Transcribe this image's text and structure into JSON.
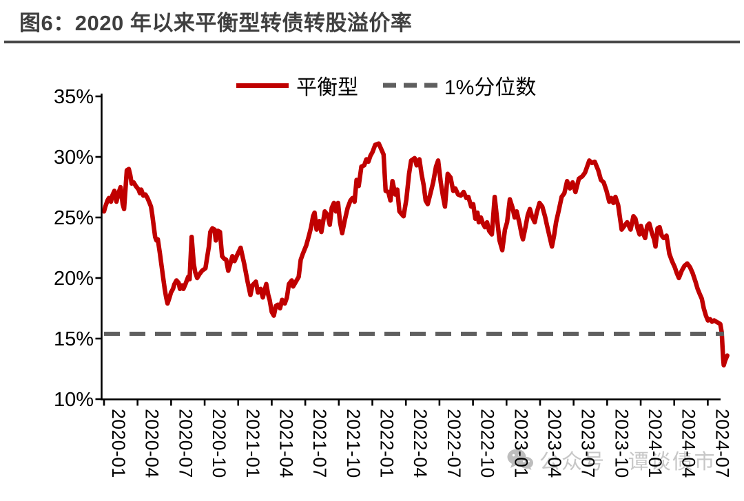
{
  "figure": {
    "title": "图6：2020 年以来平衡型转债转股溢价率"
  },
  "legend": {
    "series1_label": "平衡型",
    "series2_label": "1%分位数"
  },
  "watermark": {
    "icon": "wechat-icon",
    "text": "公众号 · 谭谈债市"
  },
  "colors": {
    "series_line": "#C00000",
    "percentile_line": "#5F5F5F",
    "title_text": "#3F3F3F",
    "title_rule": "#474747",
    "axis": "#000000",
    "watermark": "#C7C7C7"
  },
  "chart_data": {
    "type": "line",
    "title": "图6：2020 年以来平衡型转债转股溢价率",
    "legend_position": "top",
    "grid": false,
    "x_axis": {
      "unit": "months since 2020-01 (t=0 is 2020-01)",
      "tick_labels": [
        "2020-01",
        "2020-04",
        "2020-07",
        "2020-10",
        "2021-01",
        "2021-04",
        "2021-07",
        "2021-10",
        "2022-01",
        "2022-04",
        "2022-07",
        "2022-10",
        "2023-01",
        "2023-04",
        "2023-07",
        "2023-10",
        "2024-01",
        "2024-04",
        "2024-07"
      ],
      "tick_t_values": [
        0,
        3,
        6,
        9,
        12,
        15,
        18,
        21,
        24,
        27,
        30,
        33,
        36,
        39,
        42,
        45,
        48,
        51,
        54
      ]
    },
    "y_axis": {
      "unit": "%",
      "min": 10,
      "max": 35,
      "ticks": [
        {
          "label": "35%",
          "value": 35
        },
        {
          "label": "30%",
          "value": 30
        },
        {
          "label": "25%",
          "value": 25
        },
        {
          "label": "20%",
          "value": 20
        },
        {
          "label": "15%",
          "value": 15
        },
        {
          "label": "10%",
          "value": 10
        }
      ]
    },
    "series": [
      {
        "name": "平衡型",
        "type": "line",
        "color": "#C00000",
        "points": [
          [
            0,
            25.5
          ],
          [
            0.12,
            25.9
          ],
          [
            0.31,
            26.4
          ],
          [
            0.43,
            26.6
          ],
          [
            0.62,
            26.3
          ],
          [
            0.74,
            26.8
          ],
          [
            0.93,
            27.2
          ],
          [
            1.11,
            26.3
          ],
          [
            1.36,
            27.2
          ],
          [
            1.48,
            27.5
          ],
          [
            1.67,
            26.1
          ],
          [
            1.79,
            25.7
          ],
          [
            2.04,
            28.9
          ],
          [
            2.22,
            29.0
          ],
          [
            2.35,
            28.5
          ],
          [
            2.47,
            27.8
          ],
          [
            2.65,
            27.9
          ],
          [
            2.84,
            27.6
          ],
          [
            3.09,
            27.3
          ],
          [
            3.21,
            27.0
          ],
          [
            3.33,
            27.3
          ],
          [
            3.52,
            26.8
          ],
          [
            3.7,
            26.9
          ],
          [
            3.89,
            26.6
          ],
          [
            4.07,
            26.2
          ],
          [
            4.2,
            25.9
          ],
          [
            4.32,
            25.2
          ],
          [
            4.44,
            24.3
          ],
          [
            4.57,
            23.4
          ],
          [
            4.69,
            23.1
          ],
          [
            4.81,
            23.2
          ],
          [
            5,
            22.0
          ],
          [
            5.25,
            20.3
          ],
          [
            5.43,
            19.1
          ],
          [
            5.56,
            18.4
          ],
          [
            5.68,
            17.9
          ],
          [
            5.86,
            18.4
          ],
          [
            5.99,
            18.8
          ],
          [
            6.17,
            19.1
          ],
          [
            6.3,
            19.5
          ],
          [
            6.48,
            19.8
          ],
          [
            6.67,
            19.6
          ],
          [
            6.79,
            19.1
          ],
          [
            6.98,
            19.4
          ],
          [
            7.1,
            19.1
          ],
          [
            7.28,
            19.5
          ],
          [
            7.53,
            20.1
          ],
          [
            7.65,
            19.9
          ],
          [
            7.84,
            23.4
          ],
          [
            8.02,
            21.2
          ],
          [
            8.15,
            20.5
          ],
          [
            8.33,
            20.0
          ],
          [
            8.52,
            20.3
          ],
          [
            8.77,
            20.6
          ],
          [
            9.07,
            20.8
          ],
          [
            9.38,
            22.6
          ],
          [
            9.51,
            23.8
          ],
          [
            9.69,
            24.1
          ],
          [
            9.88,
            24.0
          ],
          [
            10,
            23.1
          ],
          [
            10.19,
            23.9
          ],
          [
            10.37,
            23.8
          ],
          [
            10.56,
            21.8
          ],
          [
            10.74,
            21.6
          ],
          [
            10.93,
            21.5
          ],
          [
            11.11,
            20.6
          ],
          [
            11.3,
            21.2
          ],
          [
            11.48,
            21.8
          ],
          [
            11.67,
            21.4
          ],
          [
            11.91,
            21.9
          ],
          [
            12.22,
            22.5
          ],
          [
            12.53,
            21.2
          ],
          [
            12.84,
            19.7
          ],
          [
            13.09,
            18.6
          ],
          [
            13.27,
            19.4
          ],
          [
            13.58,
            19.7
          ],
          [
            13.77,
            18.8
          ],
          [
            14.01,
            19.1
          ],
          [
            14.2,
            18.4
          ],
          [
            14.51,
            19.5
          ],
          [
            14.69,
            18.6
          ],
          [
            14.81,
            18.2
          ],
          [
            15,
            17.2
          ],
          [
            15.19,
            16.9
          ],
          [
            15.37,
            17.7
          ],
          [
            15.56,
            17.8
          ],
          [
            15.74,
            17.5
          ],
          [
            15.93,
            18.2
          ],
          [
            16.17,
            17.9
          ],
          [
            16.36,
            18.4
          ],
          [
            16.54,
            19.5
          ],
          [
            16.79,
            19.8
          ],
          [
            16.91,
            19.3
          ],
          [
            17.16,
            19.7
          ],
          [
            17.41,
            20.1
          ],
          [
            17.59,
            21.5
          ],
          [
            17.78,
            22.0
          ],
          [
            18.09,
            22.7
          ],
          [
            18.33,
            23.5
          ],
          [
            18.52,
            24.2
          ],
          [
            18.7,
            25.1
          ],
          [
            18.83,
            25.4
          ],
          [
            19.01,
            24.0
          ],
          [
            19.26,
            24.7
          ],
          [
            19.44,
            23.8
          ],
          [
            19.75,
            25.5
          ],
          [
            20,
            25.2
          ],
          [
            20.19,
            24.4
          ],
          [
            20.37,
            25.8
          ],
          [
            20.56,
            26.2
          ],
          [
            20.74,
            25.5
          ],
          [
            20.93,
            26.2
          ],
          [
            21.11,
            24.6
          ],
          [
            21.3,
            23.7
          ],
          [
            21.54,
            24.8
          ],
          [
            21.79,
            25.8
          ],
          [
            22.04,
            26.4
          ],
          [
            22.22,
            26.6
          ],
          [
            22.41,
            26.3
          ],
          [
            22.59,
            28.1
          ],
          [
            22.78,
            27.6
          ],
          [
            23.02,
            29.2
          ],
          [
            23.27,
            29.3
          ],
          [
            23.46,
            29.8
          ],
          [
            23.64,
            29.6
          ],
          [
            23.83,
            30.1
          ],
          [
            24.01,
            30.4
          ],
          [
            24.26,
            31.0
          ],
          [
            24.57,
            31.1
          ],
          [
            24.81,
            30.6
          ],
          [
            25,
            30.2
          ],
          [
            25.19,
            27.2
          ],
          [
            25.43,
            27.1
          ],
          [
            25.62,
            26.4
          ],
          [
            25.8,
            28.0
          ],
          [
            26.05,
            26.9
          ],
          [
            26.23,
            27.3
          ],
          [
            26.42,
            25.5
          ],
          [
            26.6,
            25.3
          ],
          [
            26.79,
            25.1
          ],
          [
            27.04,
            26.5
          ],
          [
            27.28,
            28.6
          ],
          [
            27.47,
            29.7
          ],
          [
            27.78,
            29.9
          ],
          [
            27.96,
            29.3
          ],
          [
            28.21,
            29.8
          ],
          [
            28.4,
            28.6
          ],
          [
            28.58,
            27.7
          ],
          [
            28.77,
            26.4
          ],
          [
            28.95,
            26.1
          ],
          [
            29.2,
            27.0
          ],
          [
            29.44,
            27.9
          ],
          [
            29.69,
            29.2
          ],
          [
            29.88,
            29.7
          ],
          [
            30.12,
            27.9
          ],
          [
            30.31,
            26.8
          ],
          [
            30.49,
            25.9
          ],
          [
            30.74,
            28.6
          ],
          [
            30.99,
            28.3
          ],
          [
            31.23,
            27.2
          ],
          [
            31.42,
            27.4
          ],
          [
            31.67,
            26.9
          ],
          [
            31.91,
            26.8
          ],
          [
            32.16,
            27.1
          ],
          [
            32.41,
            26.6
          ],
          [
            32.59,
            26.7
          ],
          [
            32.84,
            25.9
          ],
          [
            33.02,
            26.1
          ],
          [
            33.21,
            24.9
          ],
          [
            33.4,
            25.4
          ],
          [
            33.52,
            24.6
          ],
          [
            33.7,
            25.0
          ],
          [
            33.89,
            24.5
          ],
          [
            34.07,
            24.2
          ],
          [
            34.26,
            24.6
          ],
          [
            34.44,
            23.9
          ],
          [
            34.69,
            23.6
          ],
          [
            34.94,
            26.7
          ],
          [
            35.19,
            24.6
          ],
          [
            35.37,
            23.1
          ],
          [
            35.62,
            22.3
          ],
          [
            35.86,
            24.0
          ],
          [
            36.05,
            24.6
          ],
          [
            36.3,
            26.5
          ],
          [
            36.54,
            25.8
          ],
          [
            36.73,
            25.0
          ],
          [
            36.91,
            25.5
          ],
          [
            37.16,
            24.5
          ],
          [
            37.35,
            23.6
          ],
          [
            37.47,
            23.2
          ],
          [
            37.65,
            24.0
          ],
          [
            37.9,
            25.2
          ],
          [
            38.09,
            25.7
          ],
          [
            38.27,
            25.1
          ],
          [
            38.52,
            24.6
          ],
          [
            38.7,
            25.4
          ],
          [
            38.95,
            26.2
          ],
          [
            39.2,
            25.9
          ],
          [
            39.44,
            25.1
          ],
          [
            39.63,
            24.3
          ],
          [
            39.88,
            23.3
          ],
          [
            40.06,
            22.6
          ],
          [
            40.25,
            23.5
          ],
          [
            40.43,
            24.6
          ],
          [
            40.68,
            25.6
          ],
          [
            40.93,
            26.7
          ],
          [
            41.17,
            27.0
          ],
          [
            41.42,
            28.0
          ],
          [
            41.67,
            27.4
          ],
          [
            41.91,
            27.9
          ],
          [
            42.16,
            27.1
          ],
          [
            42.47,
            28.2
          ],
          [
            42.78,
            28.4
          ],
          [
            43.02,
            28.7
          ],
          [
            43.4,
            29.7
          ],
          [
            43.64,
            29.5
          ],
          [
            43.89,
            29.6
          ],
          [
            44.2,
            28.9
          ],
          [
            44.44,
            28.1
          ],
          [
            44.69,
            27.9
          ],
          [
            44.94,
            27.2
          ],
          [
            45.19,
            26.3
          ],
          [
            45.37,
            26.6
          ],
          [
            45.56,
            26.2
          ],
          [
            45.74,
            26.7
          ],
          [
            45.99,
            26.0
          ],
          [
            46.3,
            24.0
          ],
          [
            46.54,
            24.3
          ],
          [
            46.79,
            24.6
          ],
          [
            47.1,
            24.0
          ],
          [
            47.35,
            25.1
          ],
          [
            47.53,
            24.9
          ],
          [
            47.72,
            24.1
          ],
          [
            47.9,
            23.6
          ],
          [
            48.02,
            24.3
          ],
          [
            48.21,
            23.7
          ],
          [
            48.4,
            23.3
          ],
          [
            48.58,
            24.3
          ],
          [
            48.77,
            24.5
          ],
          [
            49.01,
            23.7
          ],
          [
            49.2,
            23.2
          ],
          [
            49.32,
            22.6
          ],
          [
            49.51,
            24.1
          ],
          [
            49.69,
            24.2
          ],
          [
            49.88,
            23.5
          ],
          [
            50.06,
            23.3
          ],
          [
            50.31,
            23.5
          ],
          [
            50.56,
            22.0
          ],
          [
            50.8,
            21.4
          ],
          [
            51.05,
            20.9
          ],
          [
            51.23,
            20.4
          ],
          [
            51.42,
            20.0
          ],
          [
            51.67,
            20.6
          ],
          [
            51.91,
            21.0
          ],
          [
            52.16,
            21.2
          ],
          [
            52.41,
            20.9
          ],
          [
            52.65,
            20.4
          ],
          [
            52.9,
            19.7
          ],
          [
            53.09,
            19.1
          ],
          [
            53.27,
            18.7
          ],
          [
            53.46,
            18.3
          ],
          [
            53.64,
            17.5
          ],
          [
            53.83,
            16.9
          ],
          [
            54.01,
            16.5
          ],
          [
            54.2,
            16.6
          ],
          [
            54.38,
            16.4
          ],
          [
            54.57,
            16.5
          ],
          [
            54.75,
            16.4
          ],
          [
            54.94,
            16.3
          ],
          [
            55.12,
            16.2
          ],
          [
            55.25,
            15.5
          ],
          [
            55.31,
            14.4
          ],
          [
            55.37,
            13.4
          ],
          [
            55.43,
            12.8
          ],
          [
            55.56,
            13.2
          ],
          [
            55.74,
            13.6
          ]
        ]
      },
      {
        "name": "1%分位数",
        "type": "horizontal-dashed-line",
        "color": "#5F5F5F",
        "value": 15.4
      }
    ]
  }
}
